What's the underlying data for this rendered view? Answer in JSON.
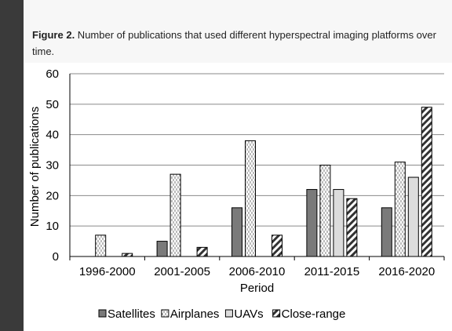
{
  "caption": {
    "label": "Figure 2.",
    "text": " Number of publications that used different hyperspectral imaging platforms over time."
  },
  "chart_data": {
    "type": "bar",
    "title": "",
    "xlabel": "Period",
    "ylabel": "Number of publications",
    "ylim": [
      0,
      60
    ],
    "yticks": [
      0,
      10,
      20,
      30,
      40,
      50,
      60
    ],
    "grid": "horizontal",
    "legend_position": "bottom",
    "categories": [
      "1996-2000",
      "2001-2005",
      "2006-2010",
      "2011-2015",
      "2016-2020"
    ],
    "series": [
      {
        "name": "Satellites",
        "values": [
          0,
          5,
          16,
          22,
          16
        ],
        "color": "#7a7a7a",
        "pattern": "solid"
      },
      {
        "name": "Airplanes",
        "values": [
          7,
          27,
          38,
          30,
          31
        ],
        "color": "#ffffff",
        "pattern": "dashed-vertical"
      },
      {
        "name": "UAVs",
        "values": [
          0,
          0,
          0,
          22,
          26
        ],
        "color": "#dcdcdc",
        "pattern": "light"
      },
      {
        "name": "Close-range",
        "values": [
          1,
          3,
          7,
          19,
          49
        ],
        "color": "#ffffff",
        "pattern": "diagonal"
      }
    ]
  }
}
